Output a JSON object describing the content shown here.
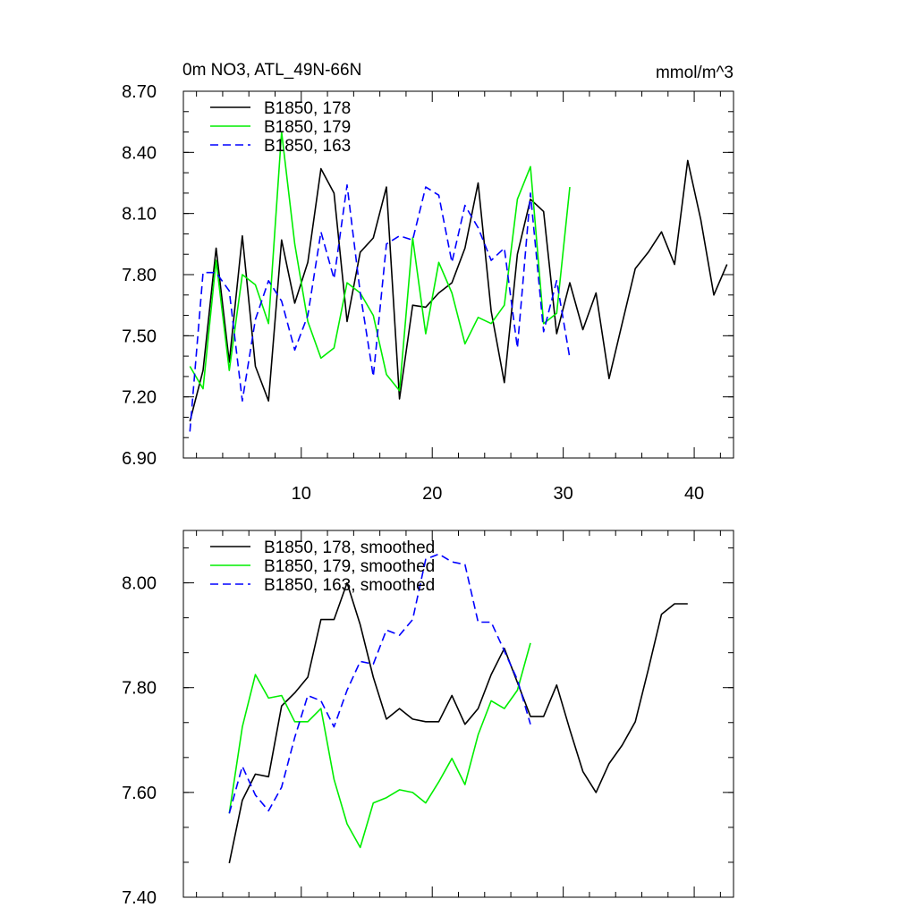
{
  "chart_data": [
    {
      "type": "line",
      "title": "0m NO3, ATL_49N-66N",
      "units": "mmol/m^3",
      "xlabel": "",
      "ylabel": "",
      "xlim": [
        1,
        43
      ],
      "ylim": [
        6.9,
        8.7
      ],
      "yticks": [
        6.9,
        7.2,
        7.5,
        7.8,
        8.1,
        8.4,
        8.7
      ],
      "ytick_labels": [
        "6.90",
        "7.20",
        "7.50",
        "7.80",
        "8.10",
        "8.40",
        "8.70"
      ],
      "xticks": [
        10,
        20,
        30,
        40
      ],
      "xtick_labels": [
        "10",
        "20",
        "30",
        "40"
      ],
      "legend_position": "top-left",
      "series": [
        {
          "name": "B1850, 178",
          "color": "#000000",
          "dash": "solid",
          "x": [
            1.5,
            2.5,
            3.5,
            4.5,
            5.5,
            6.5,
            7.5,
            8.5,
            9.5,
            10.5,
            11.5,
            12.5,
            13.5,
            14.5,
            15.5,
            16.5,
            17.5,
            18.5,
            19.5,
            20.5,
            21.5,
            22.5,
            23.5,
            24.5,
            25.5,
            26.5,
            27.5,
            28.5,
            29.5,
            30.5,
            31.5,
            32.5,
            33.5,
            34.5,
            35.5,
            36.5,
            37.5,
            38.5,
            39.5,
            40.5,
            41.5,
            42.5
          ],
          "values": [
            7.08,
            7.33,
            7.93,
            7.37,
            7.99,
            7.35,
            7.18,
            7.97,
            7.66,
            7.86,
            8.32,
            8.2,
            7.57,
            7.91,
            7.98,
            8.23,
            7.19,
            7.65,
            7.64,
            7.71,
            7.76,
            7.93,
            8.25,
            7.62,
            7.27,
            7.9,
            8.17,
            8.11,
            7.51,
            7.76,
            7.53,
            7.71,
            7.29,
            7.56,
            7.83,
            7.91,
            8.01,
            7.85,
            8.36,
            8.07,
            7.7,
            7.85
          ]
        },
        {
          "name": "B1850, 179",
          "color": "#00ee00",
          "dash": "solid",
          "x": [
            1.5,
            2.5,
            3.5,
            4.5,
            5.5,
            6.5,
            7.5,
            8.5,
            9.5,
            10.5,
            11.5,
            12.5,
            13.5,
            14.5,
            15.5,
            16.5,
            17.5,
            18.5,
            19.5,
            20.5,
            21.5,
            22.5,
            23.5,
            24.5,
            25.5,
            26.5,
            27.5,
            28.5,
            29.5,
            30.5
          ],
          "values": [
            7.35,
            7.24,
            7.87,
            7.33,
            7.8,
            7.75,
            7.56,
            8.5,
            7.95,
            7.57,
            7.39,
            7.44,
            7.76,
            7.71,
            7.6,
            7.31,
            7.23,
            7.98,
            7.51,
            7.86,
            7.71,
            7.46,
            7.59,
            7.56,
            7.65,
            8.17,
            8.33,
            7.56,
            7.61,
            8.23
          ]
        },
        {
          "name": "B1850, 163",
          "color": "#0000ff",
          "dash": "dashed",
          "x": [
            1.5,
            2.5,
            3.5,
            4.5,
            5.5,
            6.5,
            7.5,
            8.5,
            9.5,
            10.5,
            11.5,
            12.5,
            13.5,
            14.5,
            15.5,
            16.5,
            17.5,
            18.5,
            19.5,
            20.5,
            21.5,
            22.5,
            23.5,
            24.5,
            25.5,
            26.5,
            27.5,
            28.5,
            29.5,
            30.5
          ],
          "values": [
            7.03,
            7.81,
            7.81,
            7.72,
            7.18,
            7.58,
            7.77,
            7.67,
            7.43,
            7.6,
            8.01,
            7.78,
            8.24,
            7.71,
            7.3,
            7.95,
            7.99,
            7.97,
            8.23,
            8.19,
            7.86,
            8.14,
            8.03,
            7.87,
            7.93,
            7.44,
            8.2,
            7.52,
            7.77,
            7.39
          ]
        }
      ]
    },
    {
      "type": "line",
      "title": "",
      "xlabel": "",
      "ylabel": "",
      "xlim": [
        1,
        43
      ],
      "ylim": [
        7.4,
        8.1
      ],
      "yticks": [
        7.4,
        7.6,
        7.8,
        8.0
      ],
      "ytick_labels": [
        "7.40",
        "7.60",
        "7.80",
        "8.00"
      ],
      "xticks": [
        10,
        20,
        30,
        40
      ],
      "xtick_labels": [],
      "legend_position": "top-left",
      "series": [
        {
          "name": "B1850, 178, smoothed",
          "color": "#000000",
          "dash": "solid",
          "x": [
            4.5,
            5.5,
            6.5,
            7.5,
            8.5,
            9.5,
            10.5,
            11.5,
            12.5,
            13.5,
            14.5,
            15.5,
            16.5,
            17.5,
            18.5,
            19.5,
            20.5,
            21.5,
            22.5,
            23.5,
            24.5,
            25.5,
            26.5,
            27.5,
            28.5,
            29.5,
            30.5,
            31.5,
            32.5,
            33.5,
            34.5,
            35.5,
            36.5,
            37.5,
            38.5,
            39.5
          ],
          "values": [
            7.465,
            7.585,
            7.635,
            7.63,
            7.765,
            7.79,
            7.82,
            7.93,
            7.93,
            8.0,
            7.92,
            7.82,
            7.74,
            7.76,
            7.74,
            7.735,
            7.735,
            7.785,
            7.73,
            7.76,
            7.825,
            7.875,
            7.81,
            7.745,
            7.745,
            7.805,
            7.72,
            7.64,
            7.6,
            7.655,
            7.69,
            7.735,
            7.835,
            7.94,
            7.96,
            7.96
          ]
        },
        {
          "name": "B1850, 179, smoothed",
          "color": "#00ee00",
          "dash": "solid",
          "x": [
            4.5,
            5.5,
            6.5,
            7.5,
            8.5,
            9.5,
            10.5,
            11.5,
            12.5,
            13.5,
            14.5,
            15.5,
            16.5,
            17.5,
            18.5,
            19.5,
            20.5,
            21.5,
            22.5,
            23.5,
            24.5,
            25.5,
            26.5,
            27.5
          ],
          "values": [
            7.56,
            7.725,
            7.825,
            7.78,
            7.785,
            7.735,
            7.735,
            7.76,
            7.625,
            7.54,
            7.495,
            7.58,
            7.59,
            7.605,
            7.6,
            7.58,
            7.62,
            7.665,
            7.615,
            7.71,
            7.775,
            7.76,
            7.795,
            7.885
          ]
        },
        {
          "name": "B1850, 163, smoothed",
          "color": "#0000ff",
          "dash": "dashed",
          "x": [
            4.5,
            5.5,
            6.5,
            7.5,
            8.5,
            9.5,
            10.5,
            11.5,
            12.5,
            13.5,
            14.5,
            15.5,
            16.5,
            17.5,
            18.5,
            19.5,
            20.5,
            21.5,
            22.5,
            23.5,
            24.5,
            25.5,
            26.5,
            27.5
          ],
          "values": [
            7.56,
            7.65,
            7.595,
            7.565,
            7.61,
            7.705,
            7.785,
            7.775,
            7.725,
            7.795,
            7.85,
            7.845,
            7.91,
            7.9,
            7.93,
            8.045,
            8.055,
            8.04,
            8.035,
            7.925,
            7.925,
            7.87,
            7.815,
            7.73
          ]
        }
      ]
    }
  ]
}
